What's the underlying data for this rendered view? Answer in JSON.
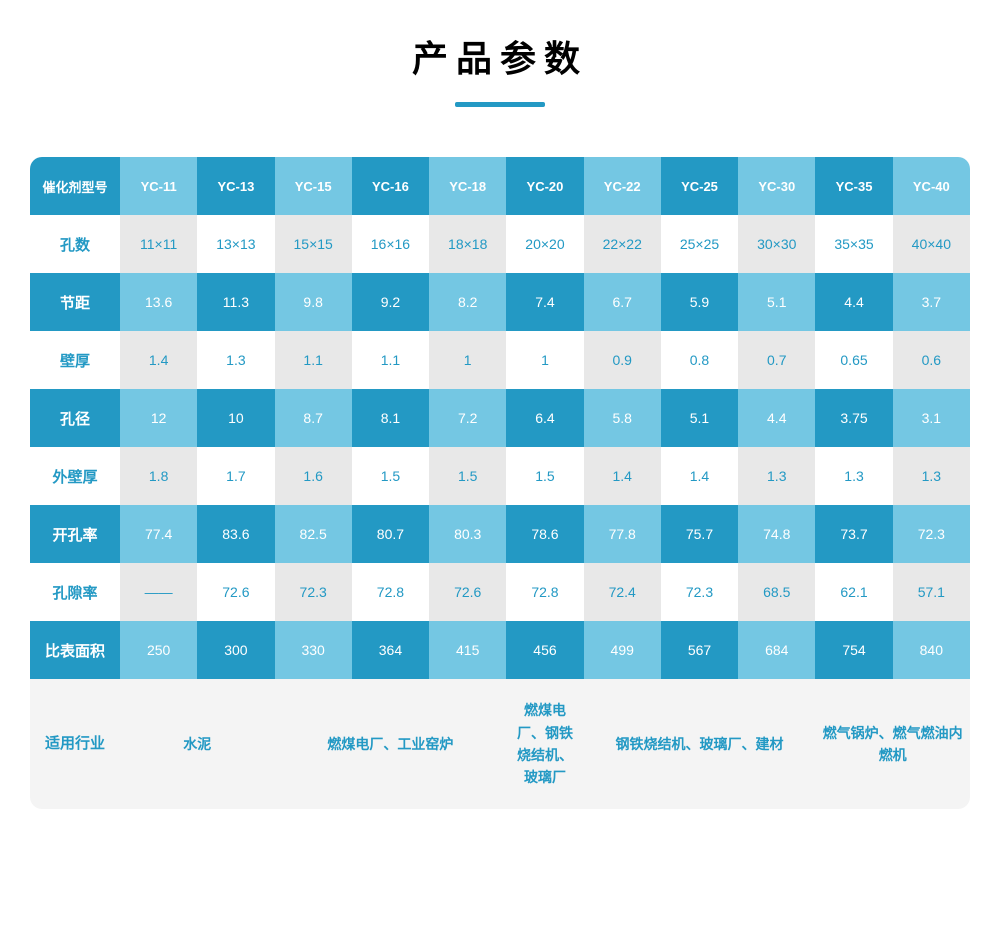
{
  "title": "产品参数",
  "colors": {
    "teal_dark": "#2399c4",
    "teal_light": "#74c7e3",
    "gray_light": "#e8e8e8",
    "white": "#ffffff",
    "text_on_teal": "#ffffff",
    "text_teal": "#2399c4",
    "text_gray": "#888888",
    "text_dark": "#333333",
    "footer_bg": "#f4f4f4"
  },
  "models": [
    "YC-11",
    "YC-13",
    "YC-15",
    "YC-16",
    "YC-18",
    "YC-20",
    "YC-22",
    "YC-25",
    "YC-30",
    "YC-35",
    "YC-40"
  ],
  "row_headers": [
    "催化剂型号",
    "孔数",
    "节距",
    "壁厚",
    "孔径",
    "外壁厚",
    "开孔率",
    "孔隙率",
    "比表面积",
    "适用行业"
  ],
  "rows": {
    "hole_count": [
      "11×11",
      "13×13",
      "15×15",
      "16×16",
      "18×18",
      "20×20",
      "22×22",
      "25×25",
      "30×30",
      "35×35",
      "40×40"
    ],
    "pitch": [
      "13.6",
      "11.3",
      "9.8",
      "9.2",
      "8.2",
      "7.4",
      "6.7",
      "5.9",
      "5.1",
      "4.4",
      "3.7"
    ],
    "wall": [
      "1.4",
      "1.3",
      "1.1",
      "1.1",
      "1",
      "1",
      "0.9",
      "0.8",
      "0.7",
      "0.65",
      "0.6"
    ],
    "diameter": [
      "12",
      "10",
      "8.7",
      "8.1",
      "7.2",
      "6.4",
      "5.8",
      "5.1",
      "4.4",
      "3.75",
      "3.1"
    ],
    "outer_wall": [
      "1.8",
      "1.7",
      "1.6",
      "1.5",
      "1.5",
      "1.5",
      "1.4",
      "1.4",
      "1.3",
      "1.3",
      "1.3"
    ],
    "open_rate": [
      "77.4",
      "83.6",
      "82.5",
      "80.7",
      "80.3",
      "78.6",
      "77.8",
      "75.7",
      "74.8",
      "73.7",
      "72.3"
    ],
    "porosity": [
      "——",
      "72.6",
      "72.3",
      "72.8",
      "72.6",
      "72.8",
      "72.4",
      "72.3",
      "68.5",
      "62.1",
      "57.1"
    ],
    "surface": [
      "250",
      "300",
      "330",
      "364",
      "415",
      "456",
      "499",
      "567",
      "684",
      "754",
      "840"
    ]
  },
  "footer": {
    "cells": [
      {
        "span": 2,
        "text": "水泥"
      },
      {
        "span": 3,
        "text": "燃煤电厂、工业窑炉"
      },
      {
        "span": 1,
        "text": "燃煤电厂、钢铁烧结机、玻璃厂"
      },
      {
        "span": 3,
        "text": "钢铁烧结机、玻璃厂、建材"
      },
      {
        "span": 2,
        "text": "燃气锅炉、燃气燃油内燃机"
      }
    ]
  }
}
